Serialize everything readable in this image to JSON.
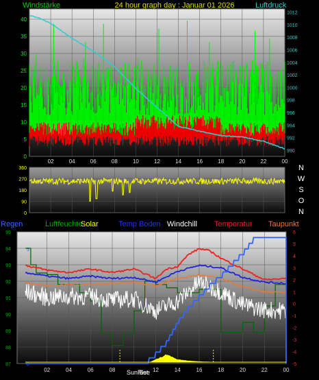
{
  "header": {
    "title": "24 hour graph day : Januar 01 2026",
    "left_label": "Windstärke",
    "right_label": "Luftdruck"
  },
  "legend": {
    "regen": "Regen",
    "luftfeuchte": "Luftfeuchte",
    "solar": "Solar",
    "temp_boden": "Temp Boden",
    "windchill": "Windchill",
    "temperatur": "Temperatur",
    "taupunkt": "Taupunkt"
  },
  "compass": [
    "N",
    "W",
    "S",
    "O",
    "N"
  ],
  "sun": {
    "rise": "SunRise",
    "set": "Set"
  },
  "colors": {
    "bg": "#000000",
    "wind_gust": "#00ee00",
    "wind_avg": "#ee0000",
    "pressure": "#33cccc",
    "wind_dir": "#ffff00",
    "regen": "#3366ff",
    "luftfeuchte": "#006600",
    "temp_boden": "#2222dd",
    "windchill": "#ffffff",
    "temperatur": "#ee2222",
    "taupunkt": "#ee7733",
    "solar": "#ffff00"
  },
  "chart_data": [
    {
      "type": "line",
      "x_ticks": [
        "02",
        "04",
        "06",
        "08",
        "10",
        "12",
        "14",
        "16",
        "18",
        "20",
        "22",
        "00"
      ],
      "y_left_ticks": [
        "0",
        "5",
        "10",
        "15",
        "20",
        "25",
        "30",
        "35",
        "40"
      ],
      "ylim_left": [
        0,
        43
      ],
      "y_right_ticks": [
        "990",
        "992",
        "994",
        "996",
        "998",
        "1000",
        "1002",
        "1004",
        "1006",
        "1008",
        "1010",
        "1012"
      ],
      "ylim_right": [
        989,
        1012.5
      ],
      "series": [
        {
          "name": "",
          "role": "gust_band",
          "range": [
            12,
            28
          ]
        },
        {
          "name": "",
          "role": "avg_band",
          "range": [
            6,
            10
          ]
        },
        {
          "name": "",
          "role": "pressure",
          "x": [
            0,
            1,
            2,
            3,
            4,
            5,
            6,
            8,
            10,
            12,
            14,
            16,
            18,
            20,
            22,
            24
          ],
          "values": [
            1011.5,
            1011,
            1010.2,
            1009,
            1007.8,
            1006.8,
            1005.8,
            1003.3,
            999.8,
            996.8,
            993.8,
            993,
            992.3,
            992.1,
            991.4,
            990.2
          ]
        }
      ]
    },
    {
      "type": "line",
      "x_ticks": [
        "02",
        "04",
        "06",
        "08",
        "10",
        "12",
        "14",
        "16",
        "18",
        "20",
        "22",
        "00"
      ],
      "y_ticks": [
        "0",
        "90",
        "180",
        "270",
        "360"
      ],
      "ylim": [
        0,
        360
      ],
      "series": [
        {
          "name": "",
          "role": "wind_dir",
          "base": 250,
          "spread": 25,
          "spikes": [
            [
              5.7,
              90
            ],
            [
              6.3,
              110
            ],
            [
              8.8,
              140
            ],
            [
              9.4,
              160
            ],
            [
              7.8,
              170
            ]
          ]
        }
      ]
    },
    {
      "type": "line",
      "x_ticks": [
        "02",
        "04",
        "06",
        "08",
        "10",
        "12",
        "14",
        "16",
        "18",
        "20",
        "22",
        "00"
      ],
      "y_left_ticks": [
        "87",
        "88",
        "89",
        "90",
        "91",
        "92",
        "93",
        "94",
        "95"
      ],
      "ylim_left": [
        87,
        95
      ],
      "y_rain_ticks": [
        "0",
        "5"
      ],
      "y_right_ticks": [
        "-5",
        "-4",
        "-3",
        "-2",
        "-1",
        "0",
        "1",
        "2",
        "3",
        "4",
        "5",
        "6"
      ],
      "ylim_right": [
        -5,
        6
      ],
      "series": [
        {
          "name": "Temperatur",
          "x": [
            0,
            2,
            4,
            6,
            8,
            10,
            12,
            13,
            14,
            15,
            16,
            17,
            18,
            20,
            22,
            24
          ],
          "values": [
            3.2,
            2.8,
            2.6,
            2.9,
            2.6,
            2.9,
            2.1,
            2.9,
            3.1,
            4.1,
            4.6,
            4.4,
            3.8,
            2.9,
            2.0,
            2.1
          ]
        },
        {
          "name": "Temp Boden",
          "x": [
            0,
            2,
            4,
            6,
            8,
            10,
            12,
            14,
            16,
            18,
            20,
            22,
            24
          ],
          "values": [
            2.6,
            2.3,
            2.1,
            2.3,
            2.1,
            2.2,
            1.8,
            2.7,
            3.2,
            3.0,
            2.2,
            1.8,
            1.7
          ]
        },
        {
          "name": "Taupunkt",
          "x": [
            0,
            2,
            4,
            6,
            8,
            10,
            12,
            14,
            16,
            18,
            20,
            22,
            24
          ],
          "values": [
            1.8,
            1.5,
            1.6,
            1.6,
            1.7,
            1.8,
            1.5,
            2.1,
            2.4,
            2.1,
            1.4,
            1.0,
            0.9
          ]
        },
        {
          "name": "Windchill",
          "x": [
            0,
            2,
            4,
            6,
            8,
            10,
            12,
            14,
            16,
            18,
            20,
            22,
            24
          ],
          "values": [
            1.0,
            0.5,
            0.6,
            0.6,
            0.3,
            0.4,
            -0.6,
            0.2,
            1.8,
            1.0,
            -0.1,
            -0.5,
            -0.6
          ]
        },
        {
          "name": "Luftfeuchte",
          "x": [
            0,
            0.5,
            1,
            2,
            3,
            5,
            6,
            7,
            8,
            9,
            10,
            11,
            12,
            13,
            14,
            16,
            18,
            20,
            21,
            22,
            23,
            24
          ],
          "values": [
            94,
            93,
            92.5,
            92.4,
            91.8,
            91.3,
            90.8,
            88.8,
            88.1,
            88.8,
            90.2,
            92,
            91.8,
            91.6,
            91.3,
            91.5,
            88.9,
            89.5,
            88.9,
            90.5,
            91.8,
            92.3
          ]
        },
        {
          "name": "Regen",
          "x": [
            0,
            10,
            11,
            12,
            13,
            14,
            15,
            16,
            17,
            18,
            19,
            20,
            21,
            22,
            23,
            24
          ],
          "values": [
            0,
            0,
            0,
            0.4,
            0.9,
            1.8,
            2.4,
            2.9,
            3.4,
            3.8,
            4.3,
            4.8,
            5.4,
            5.4,
            5.4,
            5.4
          ]
        },
        {
          "name": "Solar",
          "x": [
            0,
            11.5,
            12,
            12.5,
            13,
            13.5,
            14,
            15,
            16,
            17,
            24
          ],
          "values": [
            0,
            0,
            0.3,
            0.6,
            1.0,
            0.6,
            0.3,
            0.15,
            0.05,
            0,
            0
          ]
        }
      ]
    }
  ]
}
